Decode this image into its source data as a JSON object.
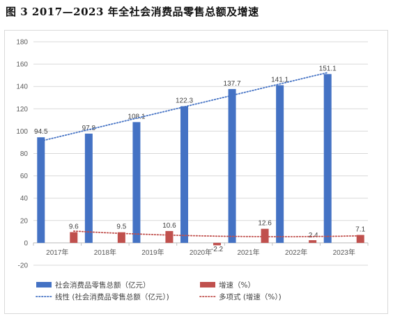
{
  "figure_title": "图 3   2017—2023 年全社会消费品零售总额及增速",
  "chart_data": {
    "type": "bar",
    "title": "图 3   2017—2023 年全社会消费品零售总额及增速",
    "categories": [
      "2017年",
      "2018年",
      "2019年",
      "2020年",
      "2021年",
      "2022年",
      "2023年"
    ],
    "series": [
      {
        "name": "社会消费品零售总额（亿元）",
        "type": "bar",
        "color": "#4472c4",
        "values": [
          94.5,
          97.8,
          108.1,
          122.3,
          137.7,
          141.1,
          151.1
        ],
        "labels": [
          "94.5",
          "97.8",
          "108.1",
          "122.3",
          "137.7",
          "141.1",
          "151.1"
        ]
      },
      {
        "name": "增速（%）",
        "type": "bar",
        "color": "#c0504d",
        "values": [
          9.6,
          9.5,
          10.6,
          -2.2,
          12.6,
          2.4,
          7.1
        ],
        "labels": [
          "9.6",
          "9.5",
          "10.6",
          "-2.2",
          "12.6",
          "2.4",
          "7.1"
        ]
      }
    ],
    "trendlines": [
      {
        "name": "线性 (社会消费品零售总额（亿元）)",
        "kind": "linear",
        "series_index": 0,
        "color": "#4472c4",
        "style": "dotted"
      },
      {
        "name": "多项式 (增速（%）)",
        "kind": "polynomial",
        "series_index": 1,
        "color": "#c0504d",
        "style": "dotted"
      }
    ],
    "yticks": [
      -20,
      0,
      20,
      40,
      60,
      80,
      100,
      120,
      140,
      160,
      180
    ],
    "ylim": [
      -20,
      180
    ],
    "xlabel": "",
    "ylabel": "",
    "grid": true,
    "legend_position": "bottom"
  }
}
